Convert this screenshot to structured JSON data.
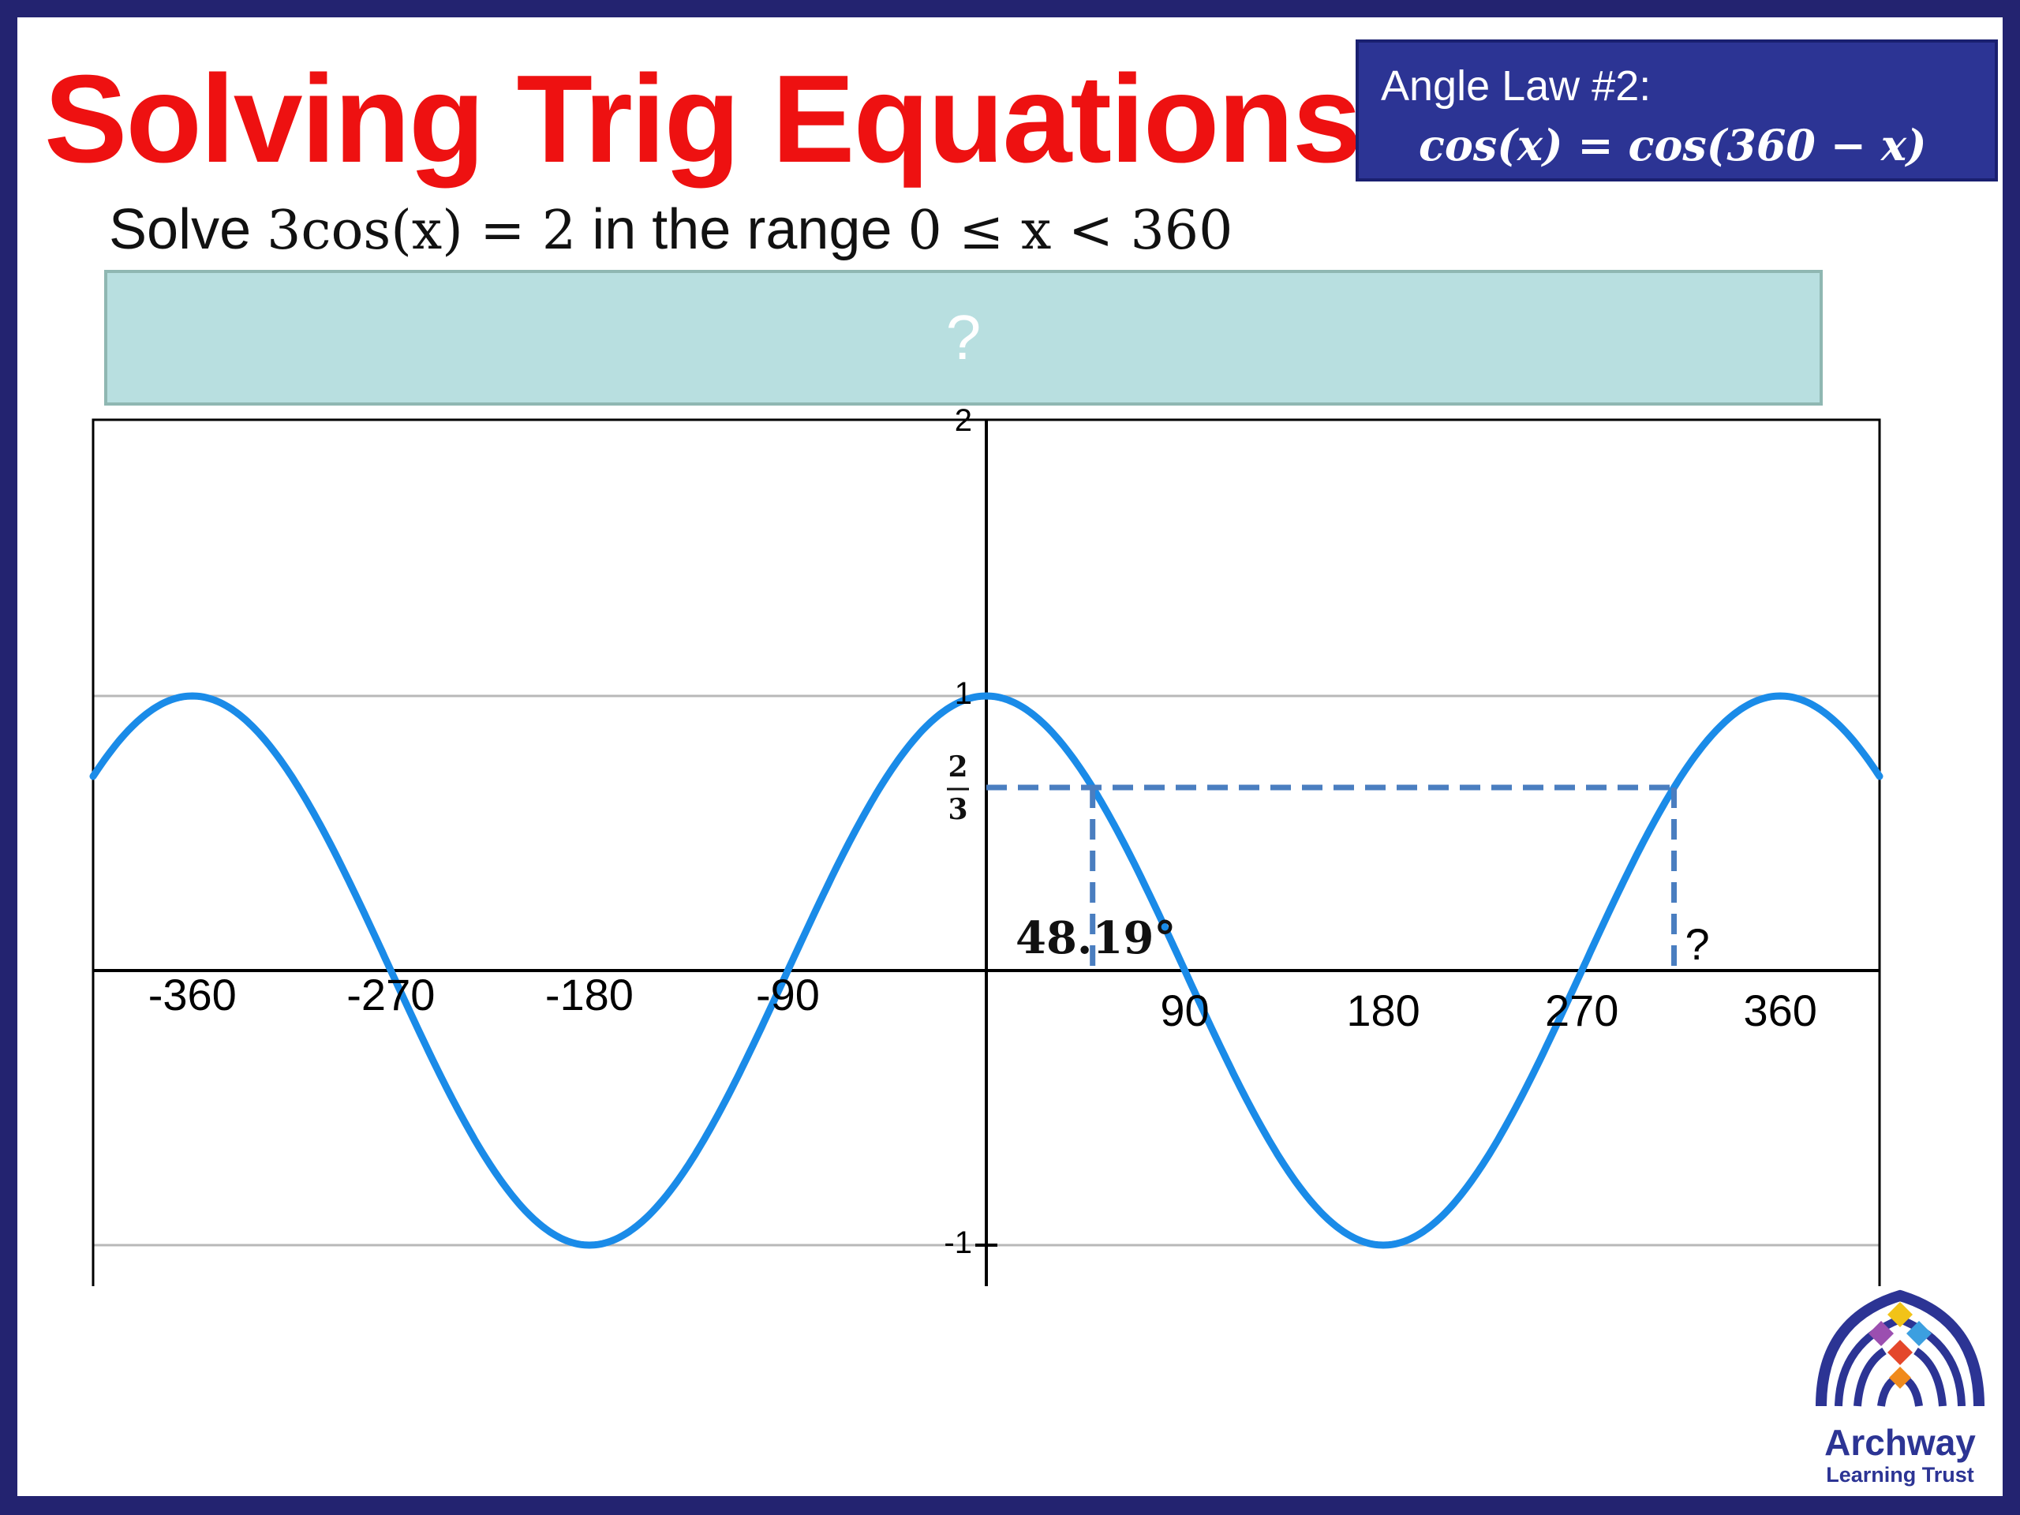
{
  "title": "Solving Trig Equations",
  "angle_law": {
    "heading": "Angle Law #2:",
    "formula": "cos(x) = cos(360 − x)"
  },
  "question": {
    "prefix": "Solve",
    "equation": "3cos(x) = 2",
    "middle": "in the range",
    "range": "0 ≤ x < 360"
  },
  "answer_box": {
    "placeholder": "?"
  },
  "chart_data": {
    "type": "line",
    "function": "cos(x)",
    "xlim": [
      -405,
      405
    ],
    "ylim": [
      -1.1,
      2
    ],
    "x_ticks": [
      {
        "value": -360,
        "label": "-360"
      },
      {
        "value": -270,
        "label": "-270"
      },
      {
        "value": -180,
        "label": "-180"
      },
      {
        "value": -90,
        "label": "-90"
      },
      {
        "value": 90,
        "label": "90"
      },
      {
        "value": 180,
        "label": "180"
      },
      {
        "value": 270,
        "label": "270"
      },
      {
        "value": 360,
        "label": "360"
      }
    ],
    "y_ticks": [
      {
        "value": 2,
        "label": "2"
      },
      {
        "value": 1,
        "label": "1"
      },
      {
        "value": -1,
        "label": "-1"
      }
    ],
    "horizontal_gridlines": [
      1,
      -1
    ],
    "curve_color": "#1a8be8",
    "dashed_color": "#4a7ec0",
    "level_line": {
      "y": 0.6667,
      "label_numerator": "2",
      "label_denominator": "3"
    },
    "solutions": [
      {
        "x": 48.19,
        "label": "48.19°"
      },
      {
        "x": 311.81,
        "label": "?"
      }
    ]
  },
  "logo": {
    "line1": "Archway",
    "line2": "Learning Trust"
  }
}
